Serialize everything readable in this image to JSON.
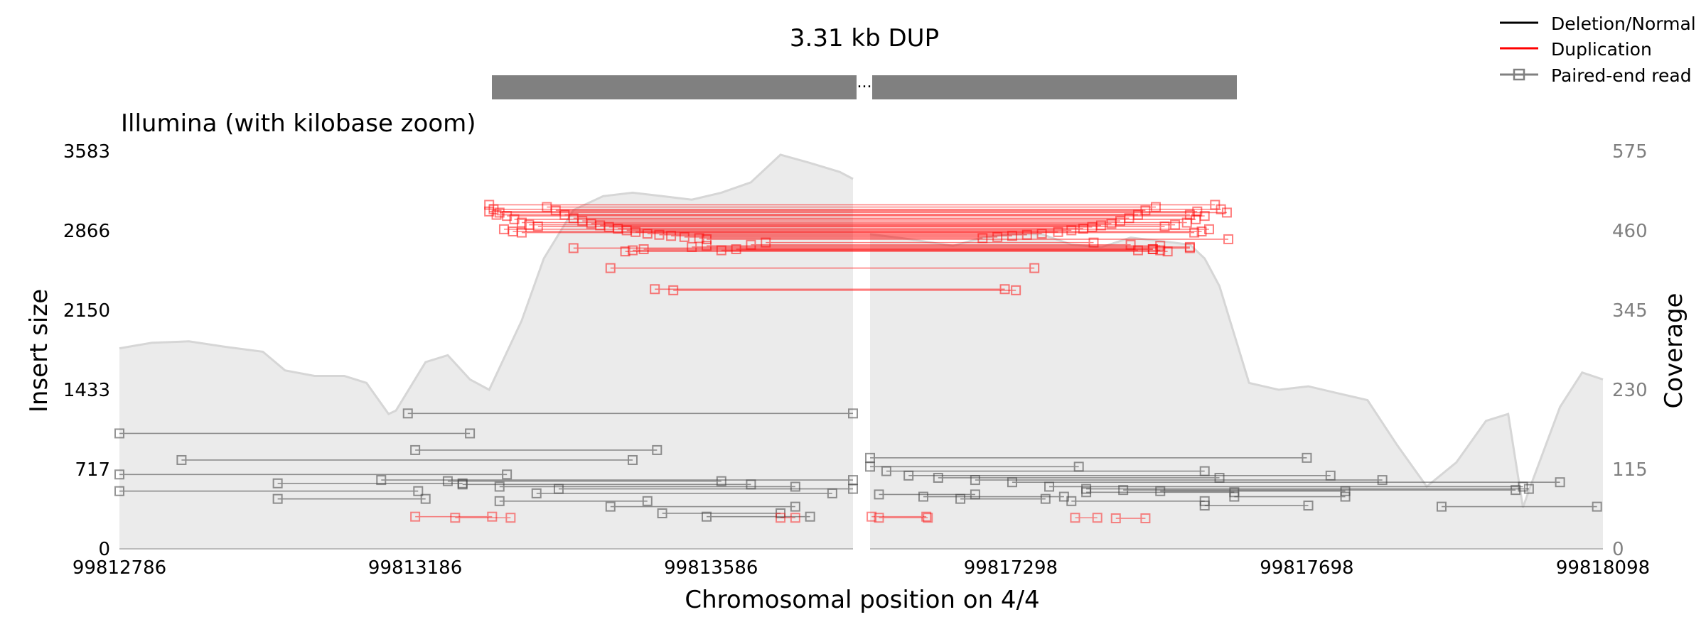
{
  "chart_data": {
    "type": "scatter",
    "title": "3.31 kb DUP",
    "subtitle": "Illumina (with kilobase zoom)",
    "xlabel": "Chromosomal position on 4/4",
    "ylabel": "Insert size",
    "y2label": "Coverage",
    "break_marker": "...",
    "ylim": [
      0,
      3583
    ],
    "y2lim": [
      0,
      575
    ],
    "yticks": [
      "0",
      "717",
      "1433",
      "2150",
      "2866",
      "3583"
    ],
    "y2ticks": [
      "0",
      "115",
      "230",
      "345",
      "460",
      "575"
    ],
    "xticks": [
      "99812786",
      "99813186",
      "99813586",
      "99817298",
      "99817698",
      "99818098"
    ],
    "segments": [
      {
        "name": "left",
        "xlim": [
          99812786,
          99813778
        ],
        "tick_values": [
          99812786,
          99813186,
          99813586
        ]
      },
      {
        "name": "right",
        "xlim": [
          99817108,
          99818098
        ],
        "tick_values": [
          99817298,
          99817698,
          99818098
        ]
      }
    ],
    "sv_bar": {
      "start": 99813286,
      "end": 99817598
    },
    "legend": {
      "placement": "top-right",
      "entries": [
        {
          "label": "Deletion/Normal",
          "color": "#000000",
          "marker": false
        },
        {
          "label": "Duplication",
          "color": "#ff0000",
          "marker": false
        },
        {
          "label": "Paired-end read",
          "color": "#808080",
          "marker": true
        }
      ]
    },
    "colors": {
      "normal": "#404040",
      "duplication": "#ff0000",
      "coverage_fill": "#ebebeb",
      "coverage_line": "#d6d6d6",
      "sv_bar": "#808080"
    },
    "coverage": [
      [
        99812786,
        290
      ],
      [
        99812830,
        298
      ],
      [
        99812880,
        300
      ],
      [
        99812930,
        292
      ],
      [
        99812980,
        285
      ],
      [
        99813010,
        258
      ],
      [
        99813050,
        250
      ],
      [
        99813090,
        250
      ],
      [
        99813120,
        240
      ],
      [
        99813150,
        195
      ],
      [
        99813160,
        200
      ],
      [
        99813200,
        270
      ],
      [
        99813230,
        280
      ],
      [
        99813260,
        245
      ],
      [
        99813286,
        230
      ],
      [
        99813330,
        330
      ],
      [
        99813360,
        420
      ],
      [
        99813400,
        490
      ],
      [
        99813440,
        510
      ],
      [
        99813480,
        515
      ],
      [
        99813520,
        510
      ],
      [
        99813560,
        505
      ],
      [
        99813600,
        515
      ],
      [
        99813640,
        530
      ],
      [
        99813680,
        570
      ],
      [
        99813720,
        558
      ],
      [
        99813760,
        545
      ],
      [
        99813778,
        535
      ],
      [
        99817108,
        455
      ],
      [
        99817160,
        448
      ],
      [
        99817220,
        438
      ],
      [
        99817260,
        450
      ],
      [
        99817300,
        455
      ],
      [
        99817340,
        455
      ],
      [
        99817380,
        440
      ],
      [
        99817420,
        436
      ],
      [
        99817460,
        450
      ],
      [
        99817500,
        445
      ],
      [
        99817540,
        440
      ],
      [
        99817560,
        420
      ],
      [
        99817580,
        380
      ],
      [
        99817620,
        240
      ],
      [
        99817660,
        230
      ],
      [
        99817700,
        235
      ],
      [
        99817740,
        225
      ],
      [
        99817780,
        215
      ],
      [
        99817820,
        150
      ],
      [
        99817860,
        90
      ],
      [
        99817900,
        125
      ],
      [
        99817940,
        185
      ],
      [
        99817970,
        195
      ],
      [
        99817990,
        60
      ],
      [
        99818000,
        90
      ],
      [
        99818040,
        205
      ],
      [
        99818070,
        255
      ],
      [
        99818098,
        245
      ]
    ],
    "duplication_reads": [
      [
        99813286,
        99817574,
        3100
      ],
      [
        99813292,
        99817582,
        3060
      ],
      [
        99813300,
        99817590,
        3030
      ],
      [
        99813310,
        99817560,
        3000
      ],
      [
        99813320,
        99817548,
        2970
      ],
      [
        99813330,
        99817536,
        2940
      ],
      [
        99813340,
        99817520,
        2920
      ],
      [
        99813352,
        99817506,
        2905
      ],
      [
        99813364,
        99817494,
        3080
      ],
      [
        99813376,
        99817480,
        3050
      ],
      [
        99813388,
        99817470,
        3010
      ],
      [
        99813400,
        99817458,
        2980
      ],
      [
        99813412,
        99817446,
        2955
      ],
      [
        99813424,
        99817434,
        2930
      ],
      [
        99813436,
        99817420,
        2915
      ],
      [
        99813448,
        99817408,
        2900
      ],
      [
        99813460,
        99817396,
        2885
      ],
      [
        99813472,
        99817380,
        2870
      ],
      [
        99813484,
        99817362,
        2855
      ],
      [
        99813500,
        99817340,
        2840
      ],
      [
        99813516,
        99817320,
        2830
      ],
      [
        99813532,
        99817300,
        2820
      ],
      [
        99813550,
        99817280,
        2810
      ],
      [
        99813570,
        99817260,
        2800
      ],
      [
        99813580,
        99817592,
        2790
      ],
      [
        99813286,
        99817550,
        3040
      ],
      [
        99813296,
        99817540,
        3010
      ],
      [
        99813306,
        99817566,
        2880
      ],
      [
        99813318,
        99817556,
        2860
      ],
      [
        99813330,
        99817546,
        2850
      ],
      [
        99813400,
        99817540,
        2710
      ],
      [
        99813470,
        99817510,
        2680
      ],
      [
        99813480,
        99817500,
        2690
      ],
      [
        99813495,
        99817490,
        2700
      ],
      [
        99813560,
        99817540,
        2720
      ],
      [
        99813580,
        99817500,
        2730
      ],
      [
        99813600,
        99817470,
        2690
      ],
      [
        99813620,
        99817490,
        2700
      ],
      [
        99813640,
        99817460,
        2740
      ],
      [
        99813660,
        99817410,
        2760
      ],
      [
        99813450,
        99817330,
        2530
      ],
      [
        99813510,
        99817290,
        2340
      ],
      [
        99813535,
        99817305,
        2330
      ]
    ],
    "normal_reads": [
      [
        99813176,
        99813778,
        1220
      ],
      [
        99812786,
        99813260,
        1040
      ],
      [
        99813186,
        99813513,
        890
      ],
      [
        99812870,
        99813480,
        800
      ],
      [
        99812786,
        99813310,
        670
      ],
      [
        99812786,
        99813190,
        520
      ],
      [
        99813000,
        99813250,
        590
      ],
      [
        99813140,
        99813778,
        620
      ],
      [
        99813230,
        99813600,
        610
      ],
      [
        99813250,
        99813640,
        580
      ],
      [
        99813300,
        99813700,
        560
      ],
      [
        99813380,
        99813778,
        540
      ],
      [
        99813300,
        99813500,
        430
      ],
      [
        99813350,
        99813750,
        500
      ],
      [
        99813450,
        99813700,
        380
      ],
      [
        99813520,
        99813680,
        320
      ],
      [
        99813580,
        99813720,
        290
      ],
      [
        99813000,
        99813200,
        450
      ],
      [
        99817108,
        99817698,
        820
      ],
      [
        99817108,
        99817390,
        740
      ],
      [
        99817130,
        99817560,
        700
      ],
      [
        99817160,
        99817730,
        660
      ],
      [
        99817200,
        99817580,
        640
      ],
      [
        99817250,
        99817800,
        620
      ],
      [
        99817300,
        99818040,
        600
      ],
      [
        99817350,
        99817990,
        560
      ],
      [
        99817400,
        99817998,
        540
      ],
      [
        99817450,
        99817980,
        530
      ],
      [
        99817500,
        99817750,
        520
      ],
      [
        99817120,
        99817250,
        490
      ],
      [
        99817180,
        99817370,
        470
      ],
      [
        99817230,
        99817345,
        450
      ],
      [
        99817380,
        99817560,
        430
      ],
      [
        99817560,
        99817700,
        390
      ],
      [
        99817880,
        99818090,
        380
      ],
      [
        99817400,
        99817600,
        510
      ],
      [
        99817600,
        99817750,
        470
      ]
    ],
    "bottom_reads": [
      [
        99813186,
        99813290,
        290
      ],
      [
        99813240,
        99813315,
        280
      ],
      [
        99813680,
        99813700,
        280
      ],
      [
        99817110,
        99817184,
        290
      ],
      [
        99817120,
        99817186,
        280
      ],
      [
        99817385,
        99817415,
        280
      ],
      [
        99817440,
        99817480,
        275
      ]
    ]
  }
}
